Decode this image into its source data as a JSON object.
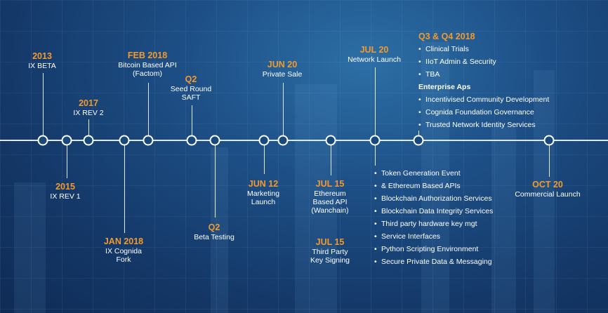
{
  "milestones": {
    "ix_beta": {
      "date": "2013",
      "desc": [
        "IX BETA"
      ]
    },
    "ix_rev1": {
      "date": "2015",
      "desc": [
        "IX REV 1"
      ]
    },
    "ix_rev2": {
      "date": "2017",
      "desc": [
        "IX REV 2"
      ]
    },
    "jan2018": {
      "date": "JAN 2018",
      "desc": [
        "IX Cognida",
        "Fork"
      ]
    },
    "feb2018": {
      "date": "FEB 2018",
      "desc": [
        "Bitcoin Based API",
        "(Factom)"
      ]
    },
    "q2_seed": {
      "date": "Q2",
      "desc": [
        "Seed Round",
        "SAFT"
      ]
    },
    "q2_beta": {
      "date": "Q2",
      "desc": [
        "Beta Testing"
      ]
    },
    "jun12": {
      "date": "JUN 12",
      "desc": [
        "Marketing",
        "Launch"
      ]
    },
    "jun20": {
      "date": "JUN 20",
      "desc": [
        "Private Sale"
      ]
    },
    "jul15a": {
      "date": "JUL 15",
      "desc": [
        "Ethereum",
        "Based API",
        "(Wanchain)"
      ]
    },
    "jul15b": {
      "date": "JUL 15",
      "desc": [
        "Third Party",
        "Key Signing"
      ]
    },
    "jul20": {
      "date": "JUL 20",
      "desc": [
        "Network Launch"
      ]
    },
    "q3q4": {
      "date": "Q3 & Q4 2018"
    },
    "oct20": {
      "date": "OCT 20",
      "desc": [
        "Commercial Launch"
      ]
    }
  },
  "q3q4_items": [
    "Clinical Trials",
    "IIoT Admin & Security",
    "TBA"
  ],
  "enterprise_heading": "Enterprise Aps",
  "enterprise_items": [
    "Incentivised Community Development",
    "Cognida Foundation Governance",
    "Trusted Network Identity Services"
  ],
  "jul20_items": [
    "Token Generation Event",
    "& Ethereum Based APIs",
    "Blockchain Authorization  Services",
    "Blockchain  Data Integrity Services",
    "Third party hardware key mgt",
    "Service Interfaces",
    "Python Scripting Environment",
    "Secure Private Data & Messaging"
  ],
  "colors": {
    "accent": "#f29a2e",
    "background": "#1d4f86",
    "line": "#dfe9f3"
  }
}
